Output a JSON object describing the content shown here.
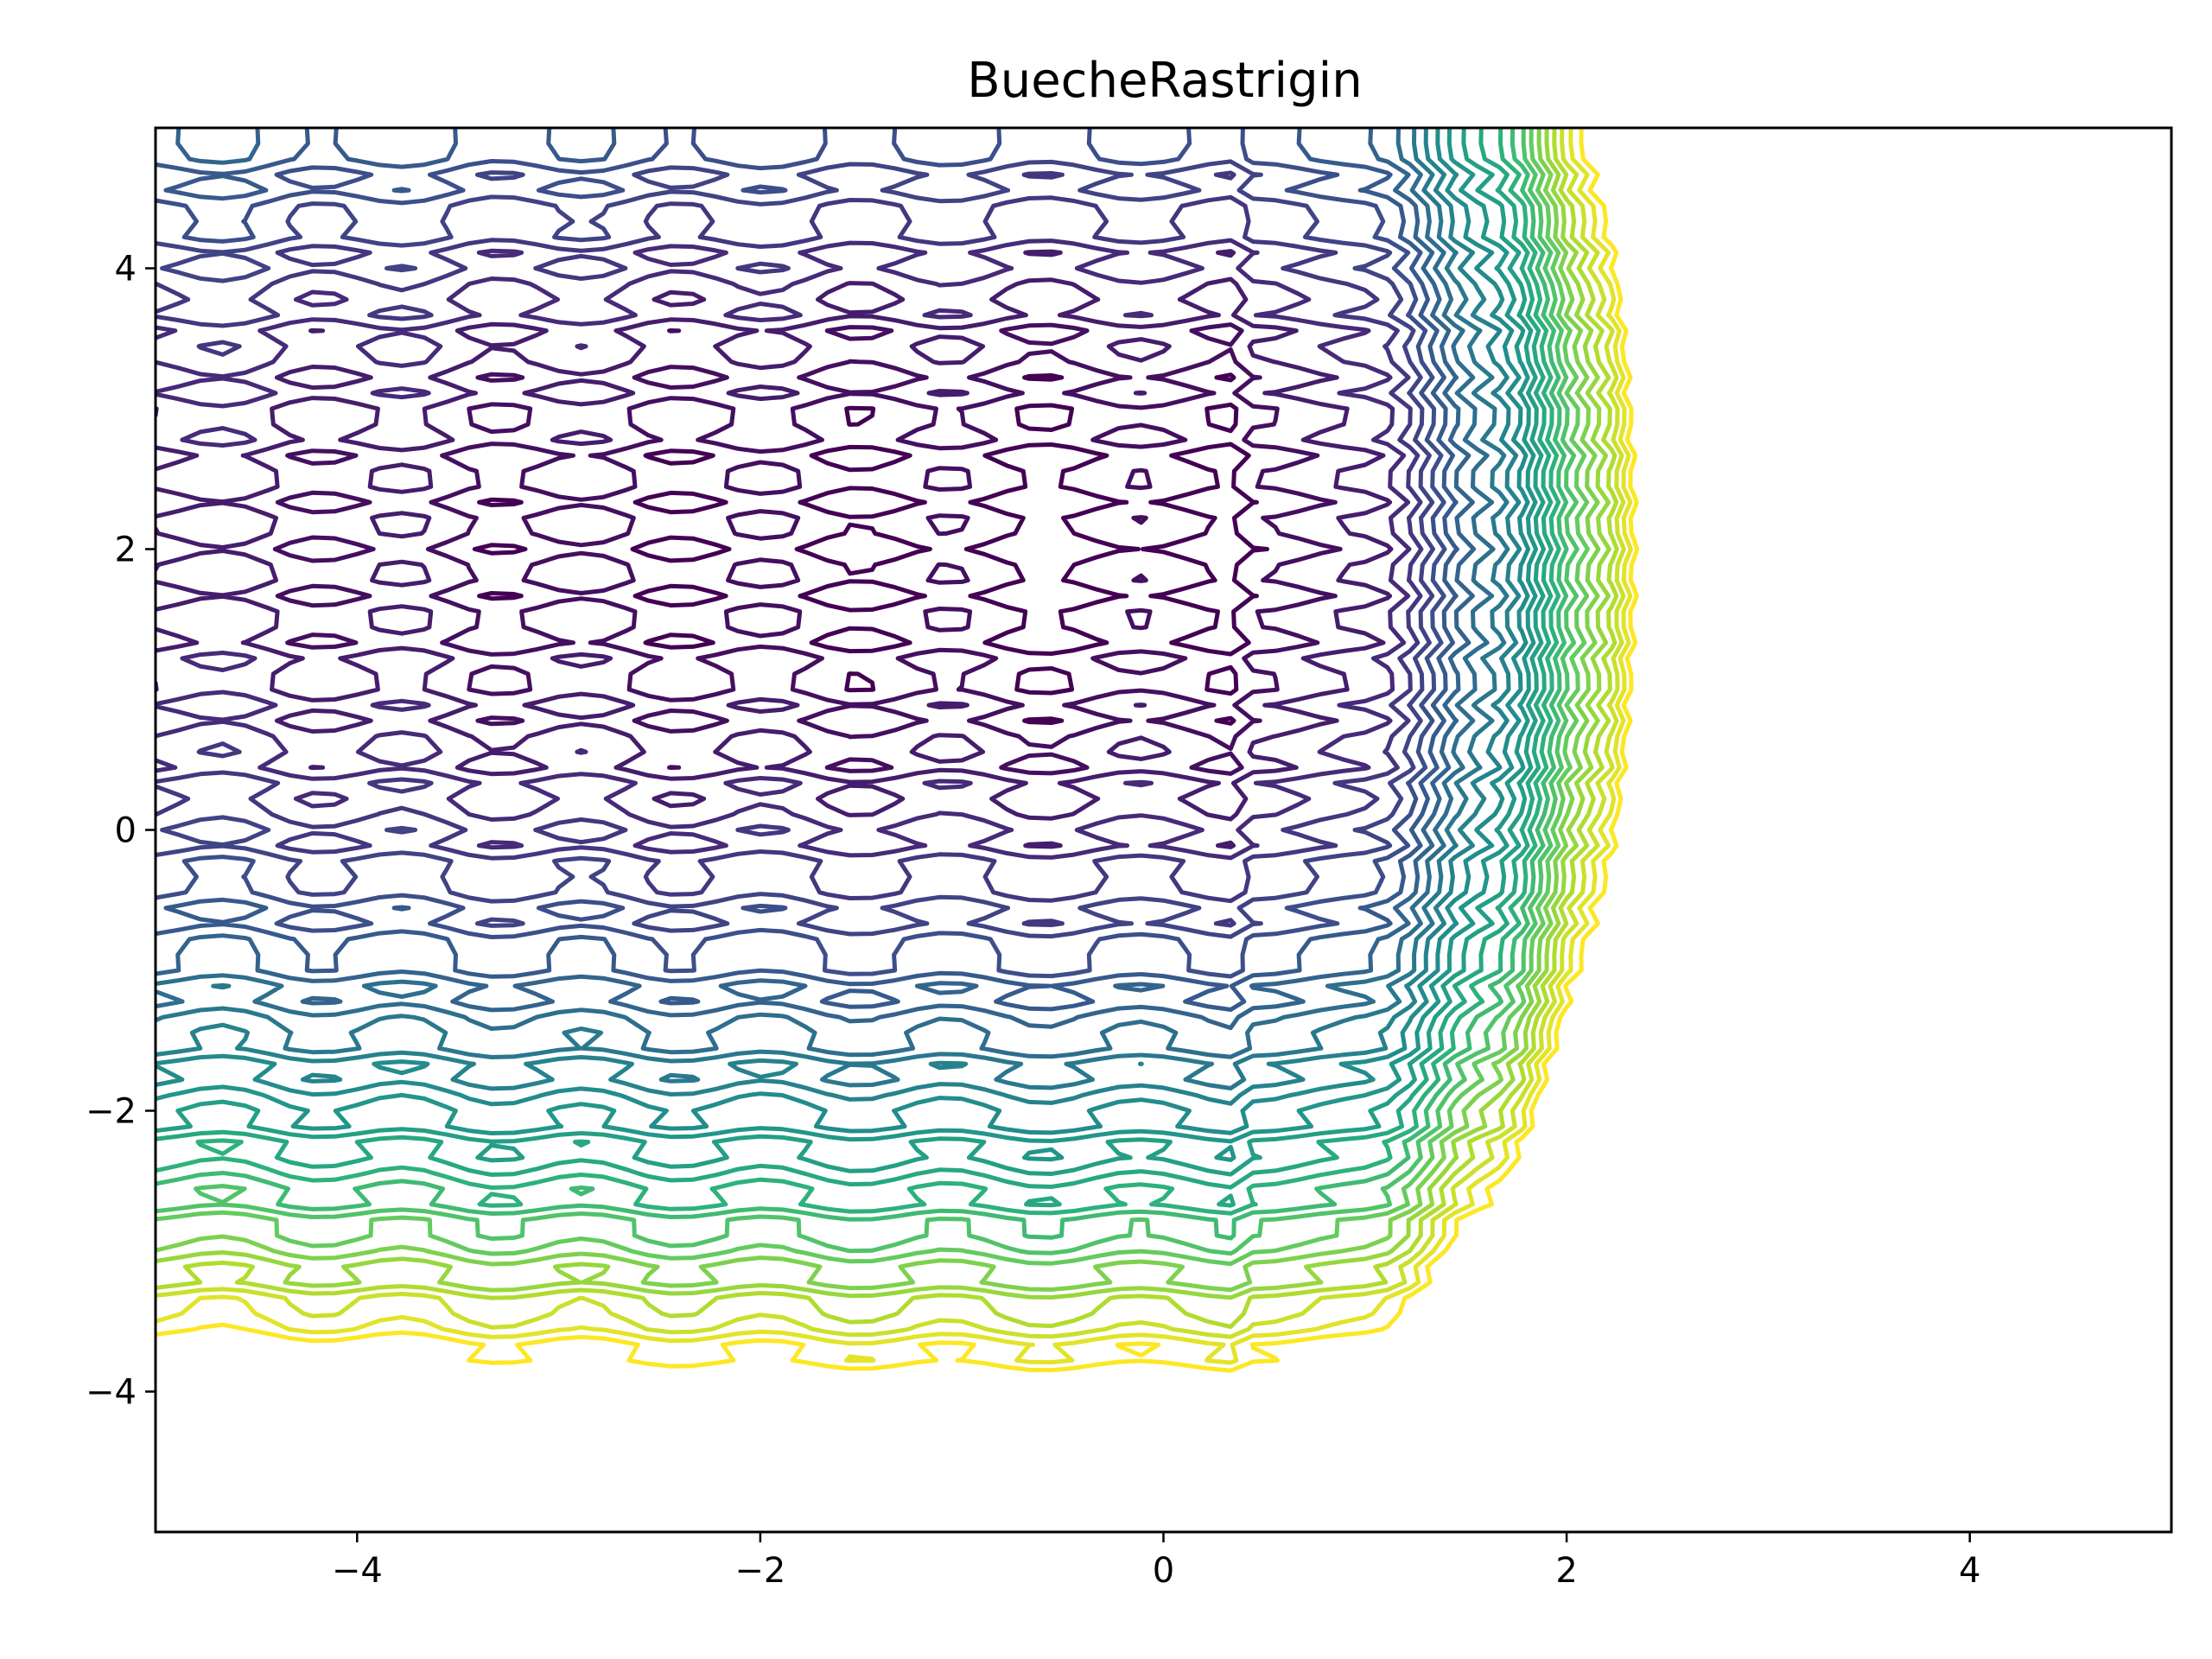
{
  "chart_data": {
    "type": "contour",
    "title": "BuecheRastrigin",
    "xlabel": "",
    "ylabel": "",
    "xlim": [
      -5,
      5
    ],
    "ylim": [
      -5,
      5
    ],
    "x_ticks": [
      -4,
      -2,
      0,
      2,
      4
    ],
    "y_ticks": [
      -4,
      -2,
      0,
      2,
      4
    ],
    "x_tick_labels": [
      "−4",
      "−2",
      "0",
      "2",
      "4"
    ],
    "y_tick_labels": [
      "−4",
      "−2",
      "0",
      "2",
      "4"
    ],
    "grid": false,
    "legend": "none",
    "colormap": "viridis",
    "colormap_stops": [
      "#440154",
      "#472c7a",
      "#3b528b",
      "#2c728e",
      "#21918c",
      "#28ae80",
      "#5ec962",
      "#addc30",
      "#fde725"
    ],
    "x_optimum": 0.4,
    "y_optimum": 2.0,
    "level_count": 26,
    "level_min": 20,
    "level_max": 420
  }
}
